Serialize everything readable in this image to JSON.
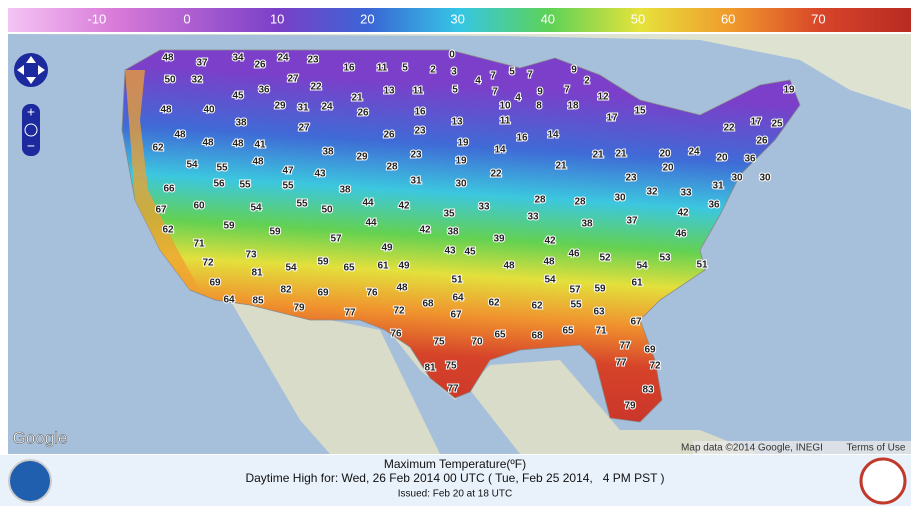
{
  "legend": {
    "ticks": [
      -10,
      0,
      10,
      20,
      30,
      40,
      50,
      60,
      70
    ]
  },
  "temperature_labels": [
    48,
    37,
    34,
    24,
    23,
    16,
    11,
    5,
    2,
    0,
    3,
    4,
    7,
    5,
    7,
    9,
    2,
    50,
    32,
    26,
    27,
    22,
    13,
    11,
    5,
    7,
    9,
    7,
    4,
    12,
    19,
    45,
    36,
    21,
    10,
    8,
    18,
    15,
    17,
    48,
    40,
    29,
    31,
    24,
    26,
    16,
    11,
    25,
    17,
    22,
    38,
    27,
    23,
    13,
    16,
    14,
    26,
    48,
    48,
    48,
    41,
    62,
    38,
    26,
    19,
    14,
    29,
    23,
    21,
    21,
    20,
    24,
    20,
    36,
    54,
    55,
    48,
    47,
    43,
    28,
    19,
    22,
    21,
    30,
    66,
    56,
    55,
    55,
    31,
    30,
    23,
    20,
    31,
    30,
    60,
    54,
    38,
    44,
    28,
    28,
    30,
    32,
    33,
    36,
    42,
    67,
    55,
    50,
    42,
    33,
    33,
    38,
    37,
    62,
    59,
    59,
    44,
    35,
    42,
    38,
    46,
    71,
    57,
    39,
    42,
    73,
    49,
    43,
    45,
    46,
    52,
    53,
    51,
    72,
    54,
    59,
    65,
    61,
    49,
    48,
    48,
    54,
    81,
    51,
    54,
    69,
    48,
    57,
    59,
    61,
    64,
    85,
    82,
    69,
    76,
    64,
    62,
    62,
    55,
    79,
    68,
    77,
    72,
    67,
    63,
    67,
    76,
    65,
    68,
    65,
    71,
    75,
    70,
    77,
    69,
    81,
    75,
    77,
    72,
    77,
    83,
    79
  ],
  "map": {
    "logo": "Google",
    "attribution": "Map data ©2014 Google, INEGI",
    "terms": "Terms of Use"
  },
  "footer": {
    "title": "Maximum Temperature(ºF)",
    "valid": "Daytime High for: Wed, 26 Feb 2014 00 UTC ( Tue, Feb 25 2014,   4 PM PST )",
    "issued": "Issued: Feb 20 at 18 UTC"
  }
}
